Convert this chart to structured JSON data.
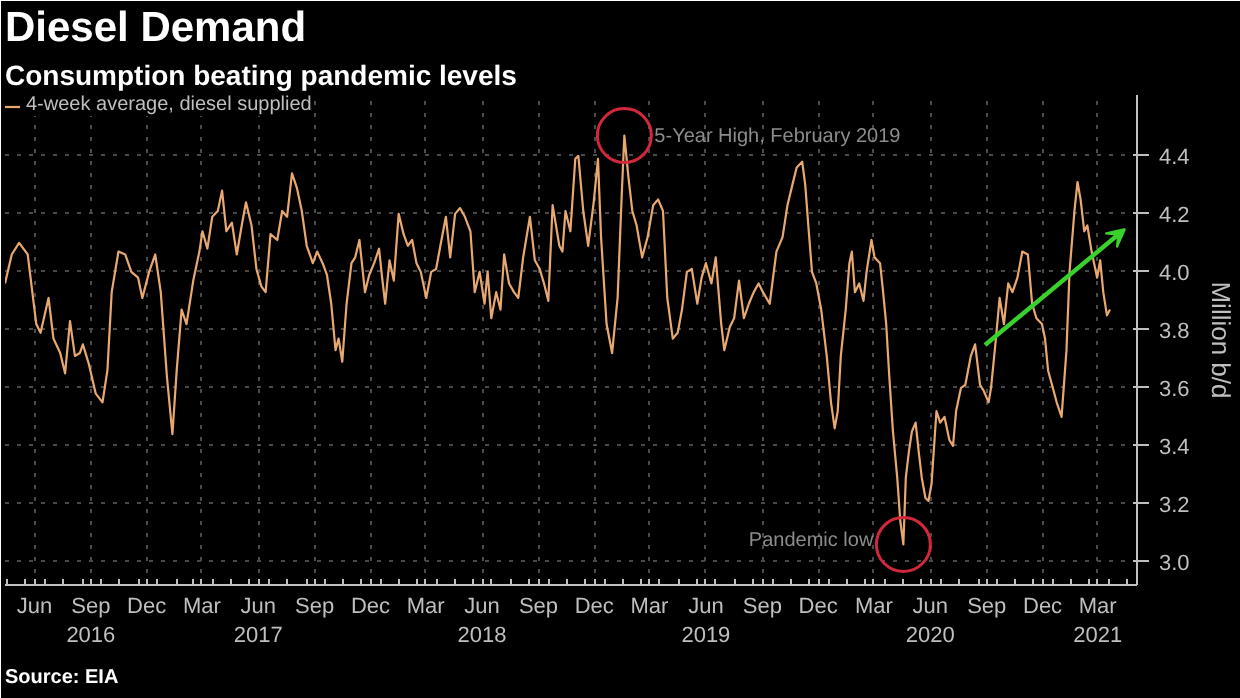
{
  "chart_data": {
    "type": "line",
    "title": "Diesel Demand",
    "subtitle": "Consumption beating pandemic levels",
    "ylabel": "Million b/d",
    "legend": "top left",
    "grid": true,
    "line_style": "solid",
    "marker": "none",
    "xlim": [
      "2016-04-28",
      "2021-05-18"
    ],
    "ylim": [
      2.92,
      4.61
    ],
    "xticks": [
      {
        "value": "2016-06-15",
        "label": "Jun"
      },
      {
        "value": "2016-09-15",
        "label": "Sep\n2016"
      },
      {
        "value": "2016-12-15",
        "label": "Dec"
      },
      {
        "value": "2017-03-15",
        "label": "Mar"
      },
      {
        "value": "2017-06-15",
        "label": "Jun\n2017"
      },
      {
        "value": "2017-09-15",
        "label": "Sep"
      },
      {
        "value": "2017-12-15",
        "label": "Dec"
      },
      {
        "value": "2018-03-15",
        "label": "Mar"
      },
      {
        "value": "2018-06-15",
        "label": "Jun\n2018"
      },
      {
        "value": "2018-09-15",
        "label": "Sep"
      },
      {
        "value": "2018-12-15",
        "label": "Dec"
      },
      {
        "value": "2019-03-15",
        "label": "Mar"
      },
      {
        "value": "2019-06-15",
        "label": "Jun\n2019"
      },
      {
        "value": "2019-09-15",
        "label": "Sep"
      },
      {
        "value": "2019-12-15",
        "label": "Dec"
      },
      {
        "value": "2020-03-15",
        "label": "Mar"
      },
      {
        "value": "2020-06-15",
        "label": "Jun\n2020"
      },
      {
        "value": "2020-09-15",
        "label": "Sep"
      },
      {
        "value": "2020-12-15",
        "label": "Dec"
      },
      {
        "value": "2021-03-15",
        "label": "Mar\n2021"
      }
    ],
    "yticks": [
      {
        "value": 3,
        "label": "3.0"
      },
      {
        "value": 3.2,
        "label": "3.2"
      },
      {
        "value": 3.4,
        "label": "3.4"
      },
      {
        "value": 3.6,
        "label": "3.6"
      },
      {
        "value": 3.8,
        "label": "3.8"
      },
      {
        "value": 4,
        "label": "4.0"
      },
      {
        "value": 4.2,
        "label": "4.2"
      },
      {
        "value": 4.4,
        "label": "4.4"
      }
    ],
    "annotations": [
      {
        "text": "5-Year High, February 2019",
        "x": "2019-02-02",
        "y": 4.47
      },
      {
        "text": "Pandemic low",
        "x": "2020-05-02",
        "y": 3.06
      },
      "Source: EIA"
    ],
    "series": [
      {
        "name": "4-week average, diesel supplied",
        "color": "#e8a870",
        "x": [
          "2016-04-28",
          "2016-05-09",
          "2016-05-21",
          "2016-06-04",
          "2016-06-18",
          "2016-06-25",
          "2016-07-08",
          "2016-07-16",
          "2016-07-27",
          "2016-08-04",
          "2016-08-12",
          "2016-08-20",
          "2016-08-28",
          "2016-09-02",
          "2016-09-12",
          "2016-09-23",
          "2016-10-04",
          "2016-10-12",
          "2016-10-19",
          "2016-10-30",
          "2016-11-10",
          "2016-11-20",
          "2016-12-01",
          "2016-12-08",
          "2016-12-19",
          "2016-12-29",
          "2017-01-07",
          "2017-01-17",
          "2017-01-26",
          "2017-02-02",
          "2017-02-10",
          "2017-02-18",
          "2017-03-01",
          "2017-03-11",
          "2017-03-16",
          "2017-03-24",
          "2017-04-01",
          "2017-04-10",
          "2017-04-17",
          "2017-04-24",
          "2017-05-03",
          "2017-05-11",
          "2017-05-19",
          "2017-05-26",
          "2017-06-04",
          "2017-06-12",
          "2017-06-20",
          "2017-06-27",
          "2017-07-05",
          "2017-07-16",
          "2017-07-24",
          "2017-08-01",
          "2017-08-09",
          "2017-08-17",
          "2017-08-25",
          "2017-09-02",
          "2017-09-12",
          "2017-09-19",
          "2017-09-28",
          "2017-10-05",
          "2017-10-12",
          "2017-10-19",
          "2017-10-24",
          "2017-10-30",
          "2017-11-06",
          "2017-11-14",
          "2017-11-20",
          "2017-11-27",
          "2017-12-06",
          "2017-12-13",
          "2017-12-21",
          "2017-12-29",
          "2018-01-03",
          "2018-01-08",
          "2018-01-15",
          "2018-01-22",
          "2018-01-30",
          "2018-02-07",
          "2018-02-14",
          "2018-02-21",
          "2018-02-28",
          "2018-03-07",
          "2018-03-16",
          "2018-03-24",
          "2018-04-01",
          "2018-04-08",
          "2018-04-17",
          "2018-04-24",
          "2018-05-02",
          "2018-05-10",
          "2018-05-18",
          "2018-05-27",
          "2018-06-03",
          "2018-06-11",
          "2018-06-19",
          "2018-06-24",
          "2018-06-30",
          "2018-07-08",
          "2018-07-15",
          "2018-07-21",
          "2018-07-29",
          "2018-08-06",
          "2018-08-13",
          "2018-08-21",
          "2018-09-01",
          "2018-09-09",
          "2018-09-17",
          "2018-09-24",
          "2018-10-01",
          "2018-10-08",
          "2018-10-19",
          "2018-10-24",
          "2018-10-29",
          "2018-11-06",
          "2018-11-14",
          "2018-11-19",
          "2018-11-27",
          "2018-12-05",
          "2018-12-14",
          "2018-12-21",
          "2018-12-26",
          "2019-01-04",
          "2019-01-13",
          "2019-01-22",
          "2019-01-29",
          "2019-02-02",
          "2019-02-09",
          "2019-02-15",
          "2019-02-22",
          "2019-03-03",
          "2019-03-12",
          "2019-03-21",
          "2019-03-29",
          "2019-04-06",
          "2019-04-13",
          "2019-04-22",
          "2019-04-30",
          "2019-05-07",
          "2019-05-15",
          "2019-05-23",
          "2019-06-01",
          "2019-06-08",
          "2019-06-15",
          "2019-06-24",
          "2019-07-01",
          "2019-07-10",
          "2019-07-15",
          "2019-07-24",
          "2019-07-31",
          "2019-08-08",
          "2019-08-16",
          "2019-08-24",
          "2019-09-01",
          "2019-09-09",
          "2019-09-16",
          "2019-09-27",
          "2019-10-08",
          "2019-10-18",
          "2019-10-26",
          "2019-11-03",
          "2019-11-10",
          "2019-11-19",
          "2019-11-24",
          "2019-11-29",
          "2019-12-05",
          "2019-12-12",
          "2019-12-20",
          "2019-12-29",
          "2020-01-05",
          "2020-01-11",
          "2020-01-16",
          "2020-01-21",
          "2020-01-29",
          "2020-02-04",
          "2020-02-08",
          "2020-02-13",
          "2020-02-20",
          "2020-02-27",
          "2020-03-03",
          "2020-03-11",
          "2020-03-16",
          "2020-03-25",
          "2020-03-30",
          "2020-04-04",
          "2020-04-09",
          "2020-04-15",
          "2020-04-22",
          "2020-04-27",
          "2020-05-02",
          "2020-05-06",
          "2020-05-11",
          "2020-05-16",
          "2020-05-22",
          "2020-05-27",
          "2020-06-01",
          "2020-06-07",
          "2020-06-12",
          "2020-06-17",
          "2020-06-25",
          "2020-07-01",
          "2020-07-08",
          "2020-07-16",
          "2020-07-22",
          "2020-07-27",
          "2020-08-04",
          "2020-08-11",
          "2020-08-20",
          "2020-08-27",
          "2020-09-04",
          "2020-09-10",
          "2020-09-18",
          "2020-09-22",
          "2020-09-29",
          "2020-10-06",
          "2020-10-13",
          "2020-10-20",
          "2020-10-27",
          "2020-11-04",
          "2020-11-12",
          "2020-11-21",
          "2020-11-28",
          "2020-12-05",
          "2020-12-14",
          "2020-12-19",
          "2020-12-24",
          "2021-01-02",
          "2021-01-07",
          "2021-01-15",
          "2021-01-23",
          "2021-01-28",
          "2021-02-05",
          "2021-02-10",
          "2021-02-15",
          "2021-02-21",
          "2021-02-26",
          "2021-03-05",
          "2021-03-14",
          "2021-03-19",
          "2021-03-24",
          "2021-03-30",
          "2021-04-04"
        ],
        "values": [
          3.96,
          4.06,
          4.1,
          4.06,
          3.82,
          3.79,
          3.91,
          3.77,
          3.72,
          3.65,
          3.83,
          3.71,
          3.72,
          3.75,
          3.68,
          3.58,
          3.55,
          3.66,
          3.93,
          4.07,
          4.06,
          4.0,
          3.98,
          3.91,
          4.0,
          4.06,
          3.93,
          3.64,
          3.44,
          3.66,
          3.87,
          3.82,
          3.97,
          4.07,
          4.14,
          4.08,
          4.19,
          4.21,
          4.28,
          4.14,
          4.17,
          4.06,
          4.16,
          4.24,
          4.16,
          4.01,
          3.95,
          3.93,
          4.13,
          4.11,
          4.21,
          4.19,
          4.34,
          4.29,
          4.21,
          4.09,
          4.03,
          4.07,
          4.03,
          3.99,
          3.89,
          3.73,
          3.77,
          3.69,
          3.89,
          4.03,
          4.05,
          4.11,
          3.93,
          3.99,
          4.03,
          4.08,
          3.98,
          3.89,
          4.04,
          3.97,
          4.2,
          4.13,
          4.09,
          4.11,
          4.03,
          4.0,
          3.91,
          4.0,
          4.01,
          4.09,
          4.19,
          4.05,
          4.2,
          4.22,
          4.19,
          4.14,
          3.93,
          4.0,
          3.89,
          4.0,
          3.84,
          3.93,
          3.87,
          4.06,
          3.96,
          3.93,
          3.91,
          4.05,
          4.19,
          4.04,
          4.01,
          3.96,
          3.9,
          4.23,
          4.09,
          4.07,
          4.21,
          4.14,
          4.39,
          4.4,
          4.21,
          4.09,
          4.24,
          4.39,
          4.12,
          3.82,
          3.72,
          3.91,
          4.28,
          4.47,
          4.32,
          4.21,
          4.16,
          4.05,
          4.12,
          4.23,
          4.25,
          4.21,
          3.91,
          3.77,
          3.79,
          3.87,
          4.0,
          4.01,
          3.89,
          3.98,
          4.03,
          3.96,
          4.05,
          3.82,
          3.73,
          3.81,
          3.84,
          3.97,
          3.84,
          3.89,
          3.93,
          3.96,
          3.93,
          3.89,
          4.07,
          4.12,
          4.23,
          4.3,
          4.36,
          4.38,
          4.3,
          4.16,
          4.0,
          3.96,
          3.87,
          3.71,
          3.55,
          3.46,
          3.52,
          3.71,
          3.87,
          4.03,
          4.07,
          3.93,
          3.96,
          3.9,
          4.0,
          4.11,
          4.05,
          4.03,
          3.93,
          3.82,
          3.64,
          3.45,
          3.29,
          3.14,
          3.06,
          3.29,
          3.38,
          3.45,
          3.48,
          3.38,
          3.29,
          3.22,
          3.21,
          3.27,
          3.52,
          3.48,
          3.5,
          3.42,
          3.4,
          3.52,
          3.6,
          3.61,
          3.71,
          3.75,
          3.61,
          3.59,
          3.55,
          3.6,
          3.75,
          3.91,
          3.82,
          3.96,
          3.93,
          3.98,
          4.07,
          4.06,
          3.89,
          3.84,
          3.82,
          3.77,
          3.66,
          3.59,
          3.55,
          3.5,
          3.73,
          4.0,
          4.21,
          4.31,
          4.25,
          4.14,
          4.16,
          4.07,
          3.98,
          4.04,
          3.93,
          3.85,
          3.87
        ]
      }
    ]
  }
}
